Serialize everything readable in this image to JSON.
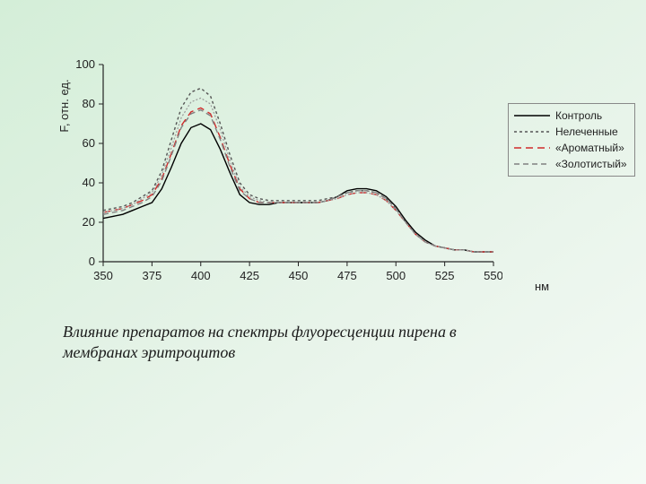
{
  "chart": {
    "type": "line",
    "background_color": "transparent",
    "axis_color": "#222222",
    "tick_font_size": 13,
    "ylabel": "F, отн. ед.",
    "label_fontsize": 13,
    "xlim": [
      350,
      550
    ],
    "ylim": [
      0,
      100
    ],
    "xtick_step": 25,
    "ytick_step": 20,
    "x_unit_label": "нм",
    "x_values": [
      350,
      355,
      360,
      365,
      370,
      375,
      380,
      385,
      390,
      395,
      400,
      405,
      410,
      415,
      420,
      425,
      430,
      435,
      440,
      445,
      450,
      455,
      460,
      465,
      470,
      475,
      480,
      485,
      490,
      495,
      500,
      505,
      510,
      515,
      520,
      525,
      530,
      535,
      540,
      545,
      550
    ],
    "series": [
      {
        "name": "Контроль",
        "color": "#000000",
        "dash": "none",
        "width": 1.4,
        "y": [
          22,
          23,
          24,
          26,
          28,
          30,
          37,
          48,
          60,
          68,
          70,
          67,
          57,
          45,
          34,
          30,
          29,
          29,
          30,
          30,
          30,
          30,
          30,
          31,
          33,
          36,
          37,
          37,
          36,
          33,
          28,
          21,
          15,
          11,
          8,
          7,
          6,
          6,
          5,
          5,
          5
        ]
      },
      {
        "name": "Нелеченные",
        "color": "#555555",
        "dash": "3 3",
        "width": 1.4,
        "y": [
          26,
          27,
          28,
          30,
          33,
          36,
          46,
          62,
          78,
          86,
          88,
          84,
          70,
          54,
          40,
          34,
          32,
          31,
          31,
          31,
          31,
          31,
          31,
          32,
          33,
          35,
          36,
          36,
          35,
          32,
          27,
          20,
          14,
          10,
          8,
          7,
          6,
          6,
          5,
          5,
          5
        ]
      },
      {
        "name": "«Ароматный»",
        "color": "#d02a2a",
        "dash": "8 5",
        "width": 1.4,
        "y": [
          25,
          26,
          27,
          29,
          31,
          34,
          42,
          55,
          69,
          76,
          78,
          75,
          63,
          49,
          37,
          32,
          30,
          30,
          30,
          30,
          30,
          30,
          30,
          31,
          32,
          34,
          35,
          35,
          34,
          31,
          26,
          20,
          14,
          10,
          8,
          7,
          6,
          6,
          5,
          5,
          5
        ]
      },
      {
        "name": "«Золотистый»",
        "color": "#808080",
        "dash": "6 4",
        "width": 1.4,
        "y": [
          24,
          25,
          26,
          28,
          30,
          33,
          41,
          54,
          68,
          75,
          77,
          74,
          62,
          48,
          36,
          32,
          30,
          30,
          30,
          30,
          30,
          30,
          30,
          31,
          33,
          35,
          36,
          36,
          35,
          32,
          27,
          20,
          14,
          10,
          8,
          7,
          6,
          6,
          5,
          5,
          5
        ]
      },
      {
        "name": "series5",
        "hide_in_legend": true,
        "color": "#9a9a9a",
        "dash": "2 2",
        "width": 1.2,
        "y": [
          25,
          26,
          27,
          29,
          32,
          35,
          44,
          58,
          73,
          81,
          83,
          80,
          67,
          51,
          38,
          33,
          31,
          30,
          30,
          30,
          30,
          30,
          30,
          31,
          32,
          34,
          35,
          35,
          34,
          31,
          26,
          20,
          14,
          10,
          8,
          7,
          6,
          6,
          5,
          5,
          5
        ]
      }
    ]
  },
  "caption": "Влияние препаратов на спектры флуоресценции пирена в мембранах эритроцитов"
}
